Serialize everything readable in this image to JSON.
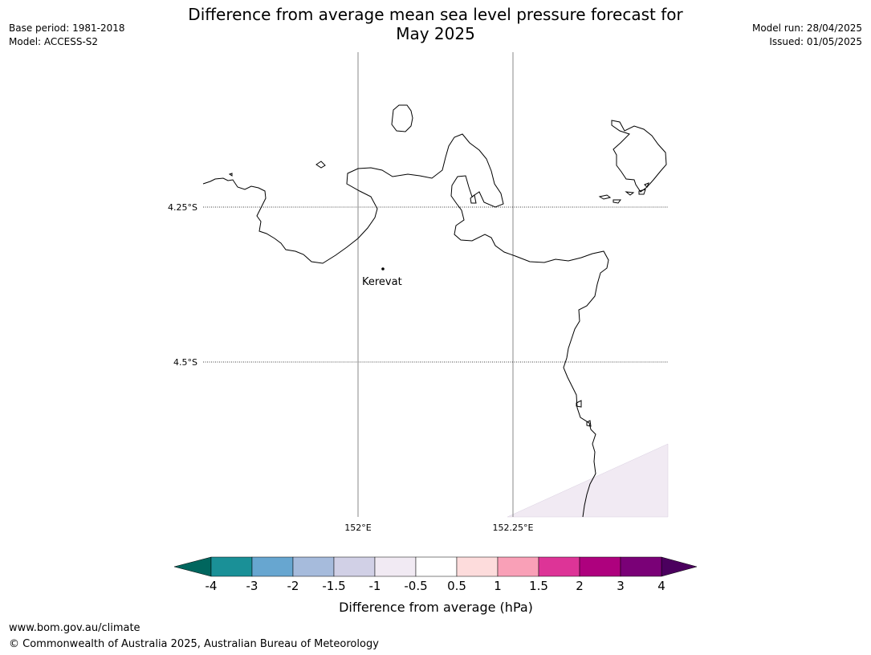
{
  "header": {
    "title_line1": "Difference from average mean sea level pressure forecast for",
    "title_line2": "May 2025",
    "base_period": "Base period: 1981-2018",
    "model": "Model: ACCESS-S2",
    "model_run": "Model run: 28/04/2025",
    "issued": "Issued: 01/05/2025"
  },
  "map": {
    "lat_labels": [
      "4.25°S",
      "4.5°S"
    ],
    "lon_labels": [
      "152°E",
      "152.25°E"
    ],
    "place": {
      "name": "Kerevat",
      "lat": -4.35,
      "lon": 152.04
    },
    "field_color_near_zero": "#f1eaf3"
  },
  "colorbar": {
    "ticks": [
      "-4",
      "-3",
      "-2",
      "-1.5",
      "-1",
      "-0.5",
      "0.5",
      "1",
      "1.5",
      "2",
      "3",
      "4"
    ],
    "colors": [
      "#1a9097",
      "#67a6d0",
      "#a6bbdc",
      "#d1d0e6",
      "#f1eaf3",
      "#ffffff",
      "#fddcdc",
      "#f9a0b7",
      "#dd3497",
      "#ae017e",
      "#7a0177"
    ],
    "under_color": "#00665e",
    "over_color": "#4b005e",
    "label": "Difference from average (hPa)"
  },
  "footer": {
    "url": "www.bom.gov.au/climate",
    "copyright": "© Commonwealth of Australia 2025, Australian Bureau of Meteorology"
  }
}
